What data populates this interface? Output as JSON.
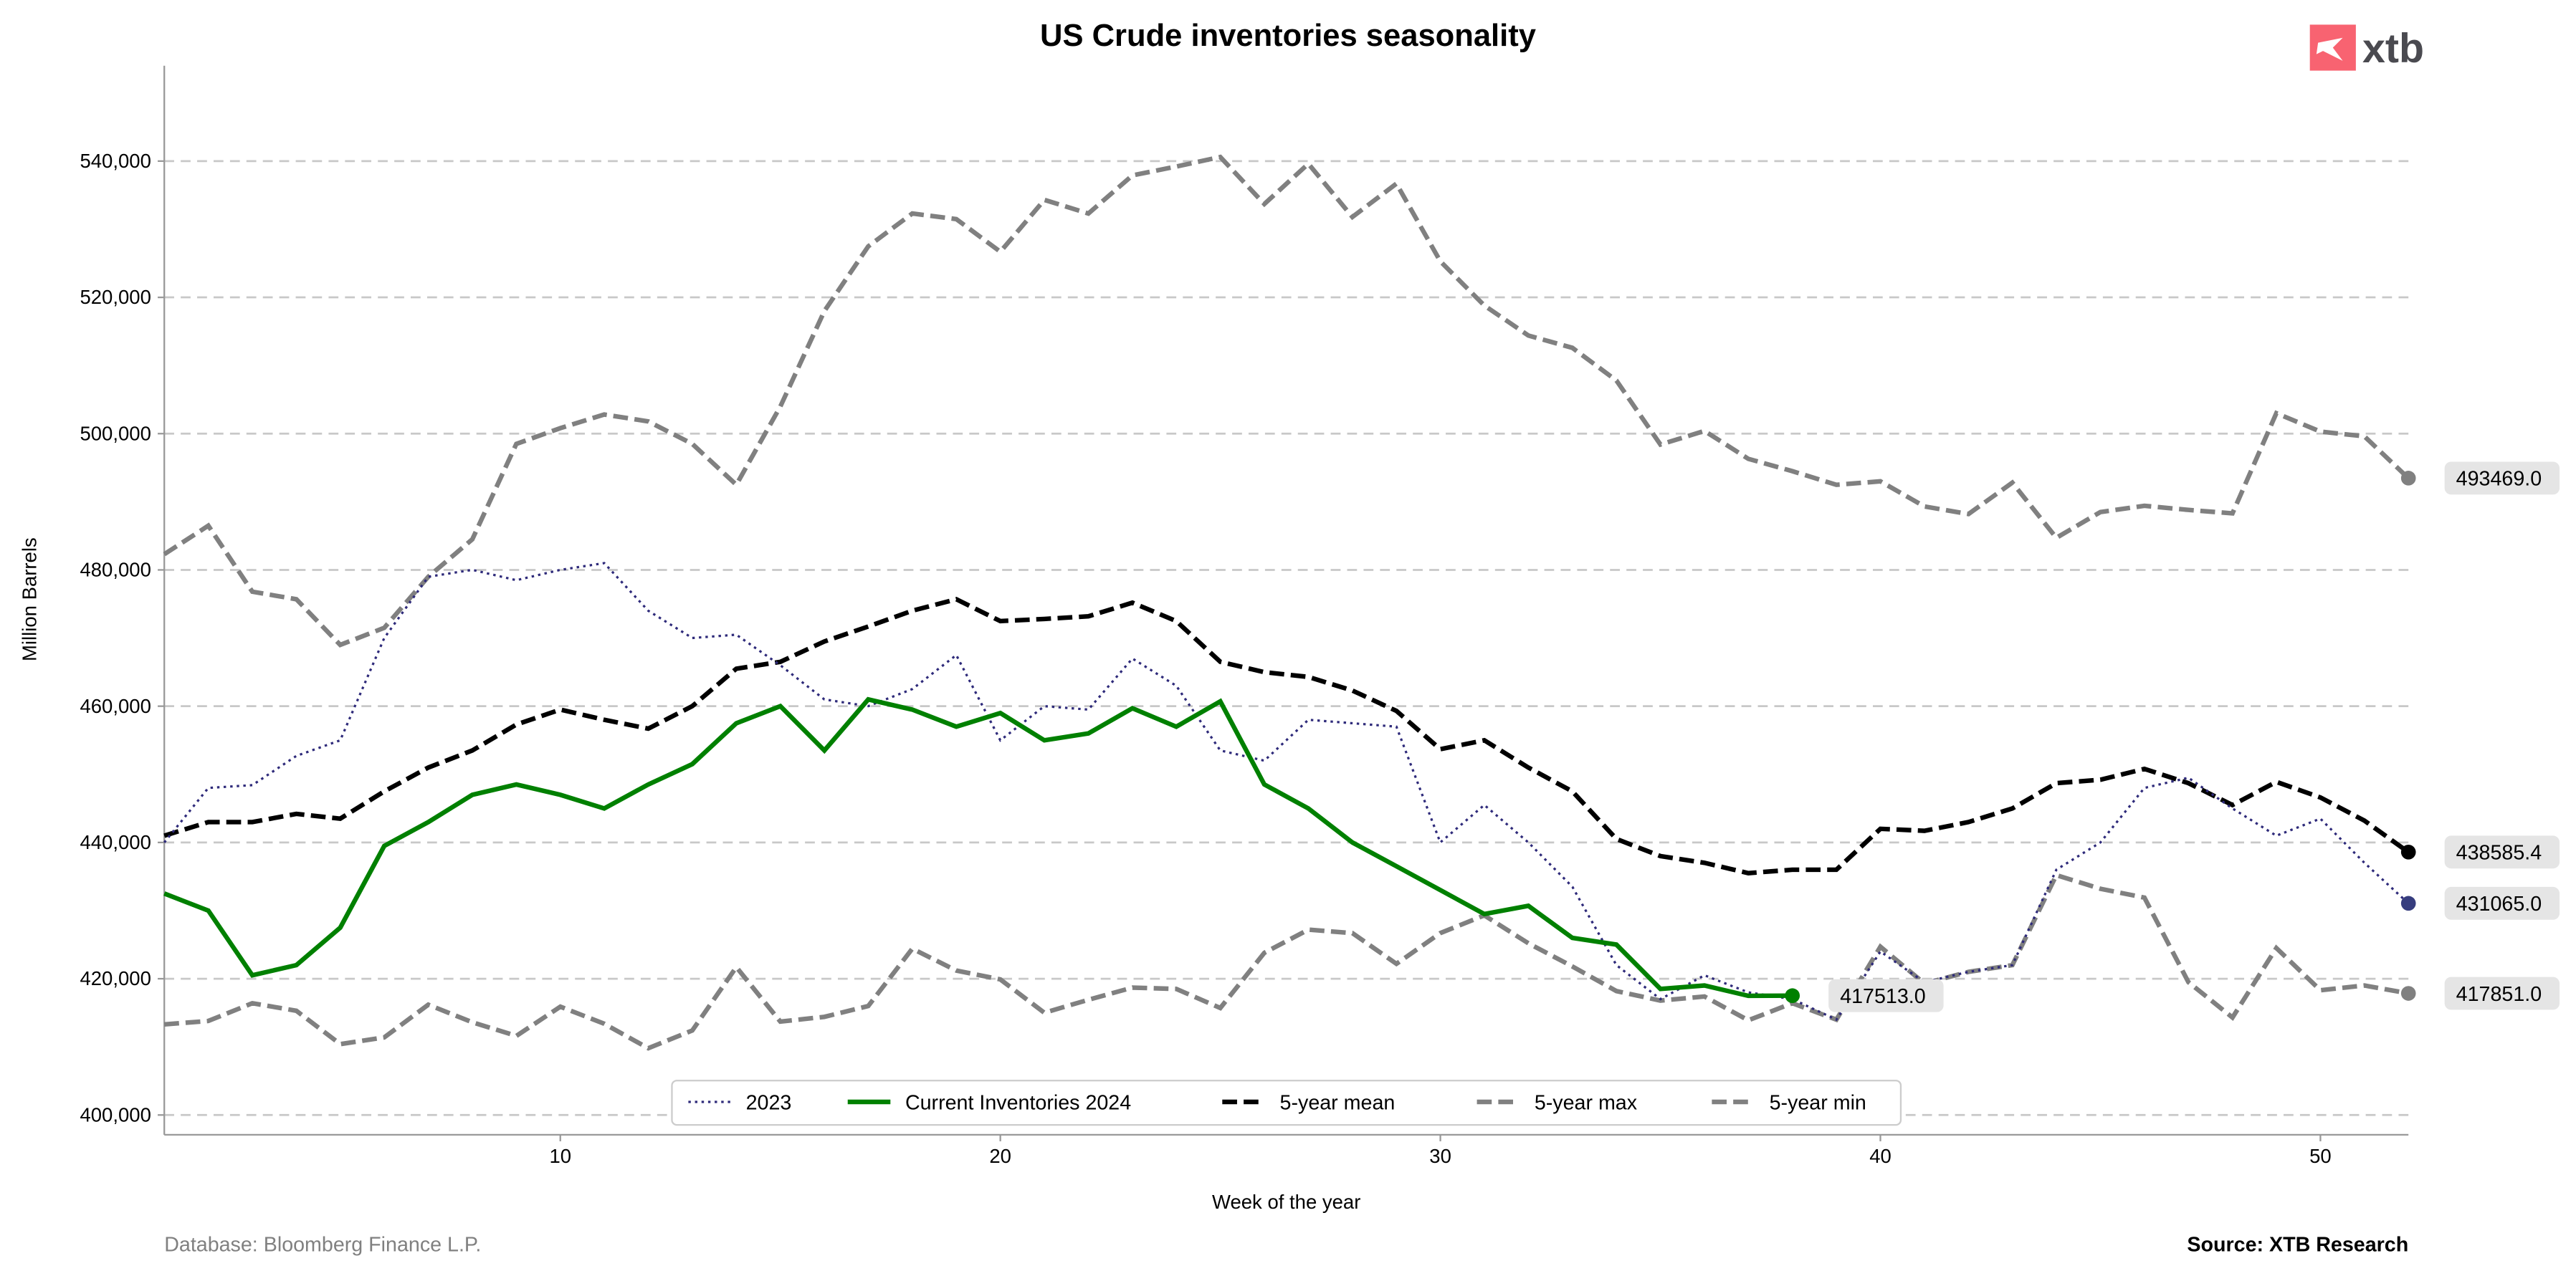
{
  "logo": {
    "text": "xtb",
    "color": "#f86371"
  },
  "footer": {
    "database": "Database: Bloomberg Finance L.P.",
    "source": "Source: XTB Research"
  },
  "chart_data": {
    "type": "line",
    "title": "US Crude inventories seasonality",
    "xlabel": "Week of the year",
    "ylabel": "Million Barrels",
    "xlim": [
      1,
      52
    ],
    "ylim": [
      397100,
      554000
    ],
    "xticks": [
      10,
      20,
      30,
      40,
      50
    ],
    "yticks": [
      400000,
      420000,
      440000,
      460000,
      480000,
      500000,
      520000,
      540000
    ],
    "ytick_labels": [
      "400,000",
      "420,000",
      "440,000",
      "460,000",
      "480,000",
      "500,000",
      "520,000",
      "540,000"
    ],
    "grid": "horizontal dashed",
    "legend_placement": "bottom-center",
    "series": [
      {
        "name": "2023",
        "color": "#2e2a7a",
        "style": "dotted",
        "end_label": "431065.0",
        "end_color": "#363d7e",
        "values": [
          440000,
          448000,
          448400,
          452700,
          455000,
          470000,
          479000,
          480000,
          478500,
          480000,
          481000,
          474000,
          470000,
          470500,
          466000,
          461000,
          460000,
          462500,
          467500,
          455000,
          460000,
          459500,
          467000,
          463000,
          453500,
          452000,
          458000,
          457500,
          457000,
          440000,
          445500,
          440000,
          433500,
          422000,
          417000,
          420500,
          418000,
          417000,
          414000,
          424000,
          419500,
          421000,
          422000,
          436000,
          440000,
          448000,
          449500,
          445000,
          441000,
          443500,
          437000,
          431065
        ]
      },
      {
        "name": "Current Inventories 2024",
        "color": "#008000",
        "style": "solid",
        "end_label": "417513.0",
        "end_color": "#008000",
        "values": [
          432500,
          430000,
          420500,
          422000,
          427500,
          439500,
          443000,
          447000,
          448500,
          447000,
          445000,
          448500,
          451500,
          457500,
          460000,
          453500,
          461000,
          459500,
          457000,
          459000,
          455000,
          456000,
          459700,
          457000,
          460700,
          448500,
          445000,
          440000,
          436500,
          433000,
          429500,
          430700,
          426000,
          425000,
          418500,
          419000,
          417500,
          417513
        ]
      },
      {
        "name": "5-year mean",
        "color": "#000000",
        "style": "dashed",
        "end_label": "438585.4",
        "end_color": "#000000",
        "values": [
          441000,
          443000,
          443000,
          444200,
          443500,
          447500,
          451000,
          453500,
          457300,
          459500,
          458000,
          456700,
          460000,
          465500,
          466500,
          469500,
          471700,
          474000,
          475700,
          472500,
          472800,
          473200,
          475200,
          472500,
          466500,
          465000,
          464300,
          462300,
          459300,
          453700,
          455000,
          451000,
          447500,
          440500,
          438000,
          437000,
          435500,
          436000,
          436000,
          442000,
          441700,
          443000,
          445000,
          448700,
          449200,
          450800,
          448700,
          445500,
          448900,
          446600,
          443200,
          438585.4
        ]
      },
      {
        "name": "5-year max",
        "color": "#808080",
        "style": "dashed",
        "end_label": "493469.0",
        "end_color": "#808080",
        "values": [
          482300,
          486500,
          476800,
          475700,
          469000,
          471500,
          479000,
          484500,
          498500,
          500800,
          502800,
          501800,
          498500,
          492500,
          504000,
          518000,
          527500,
          532300,
          531500,
          526700,
          534300,
          532300,
          537900,
          539200,
          540600,
          533700,
          539600,
          531800,
          536700,
          525300,
          518800,
          514400,
          512600,
          507800,
          498400,
          500400,
          496300,
          494500,
          492500,
          493000,
          489300,
          488200,
          492800,
          484700,
          488500,
          489400,
          488800,
          488300,
          503000,
          500300,
          499600,
          493469
        ]
      },
      {
        "name": "5-year min",
        "color": "#808080",
        "style": "dashed",
        "end_label": "417851.0",
        "end_color": "#808080",
        "values": [
          413300,
          413800,
          416400,
          415300,
          410400,
          411400,
          416200,
          413600,
          411600,
          415900,
          413400,
          409800,
          412400,
          421700,
          413700,
          414400,
          416000,
          424400,
          421200,
          419900,
          415000,
          416900,
          418700,
          418500,
          415700,
          423800,
          427200,
          426700,
          422200,
          426700,
          429300,
          425200,
          421800,
          418200,
          416800,
          417400,
          413900,
          416400,
          414000,
          424700,
          419300,
          421000,
          422000,
          435200,
          433200,
          431900,
          419500,
          414300,
          424500,
          418300,
          419000,
          417851
        ]
      }
    ]
  }
}
